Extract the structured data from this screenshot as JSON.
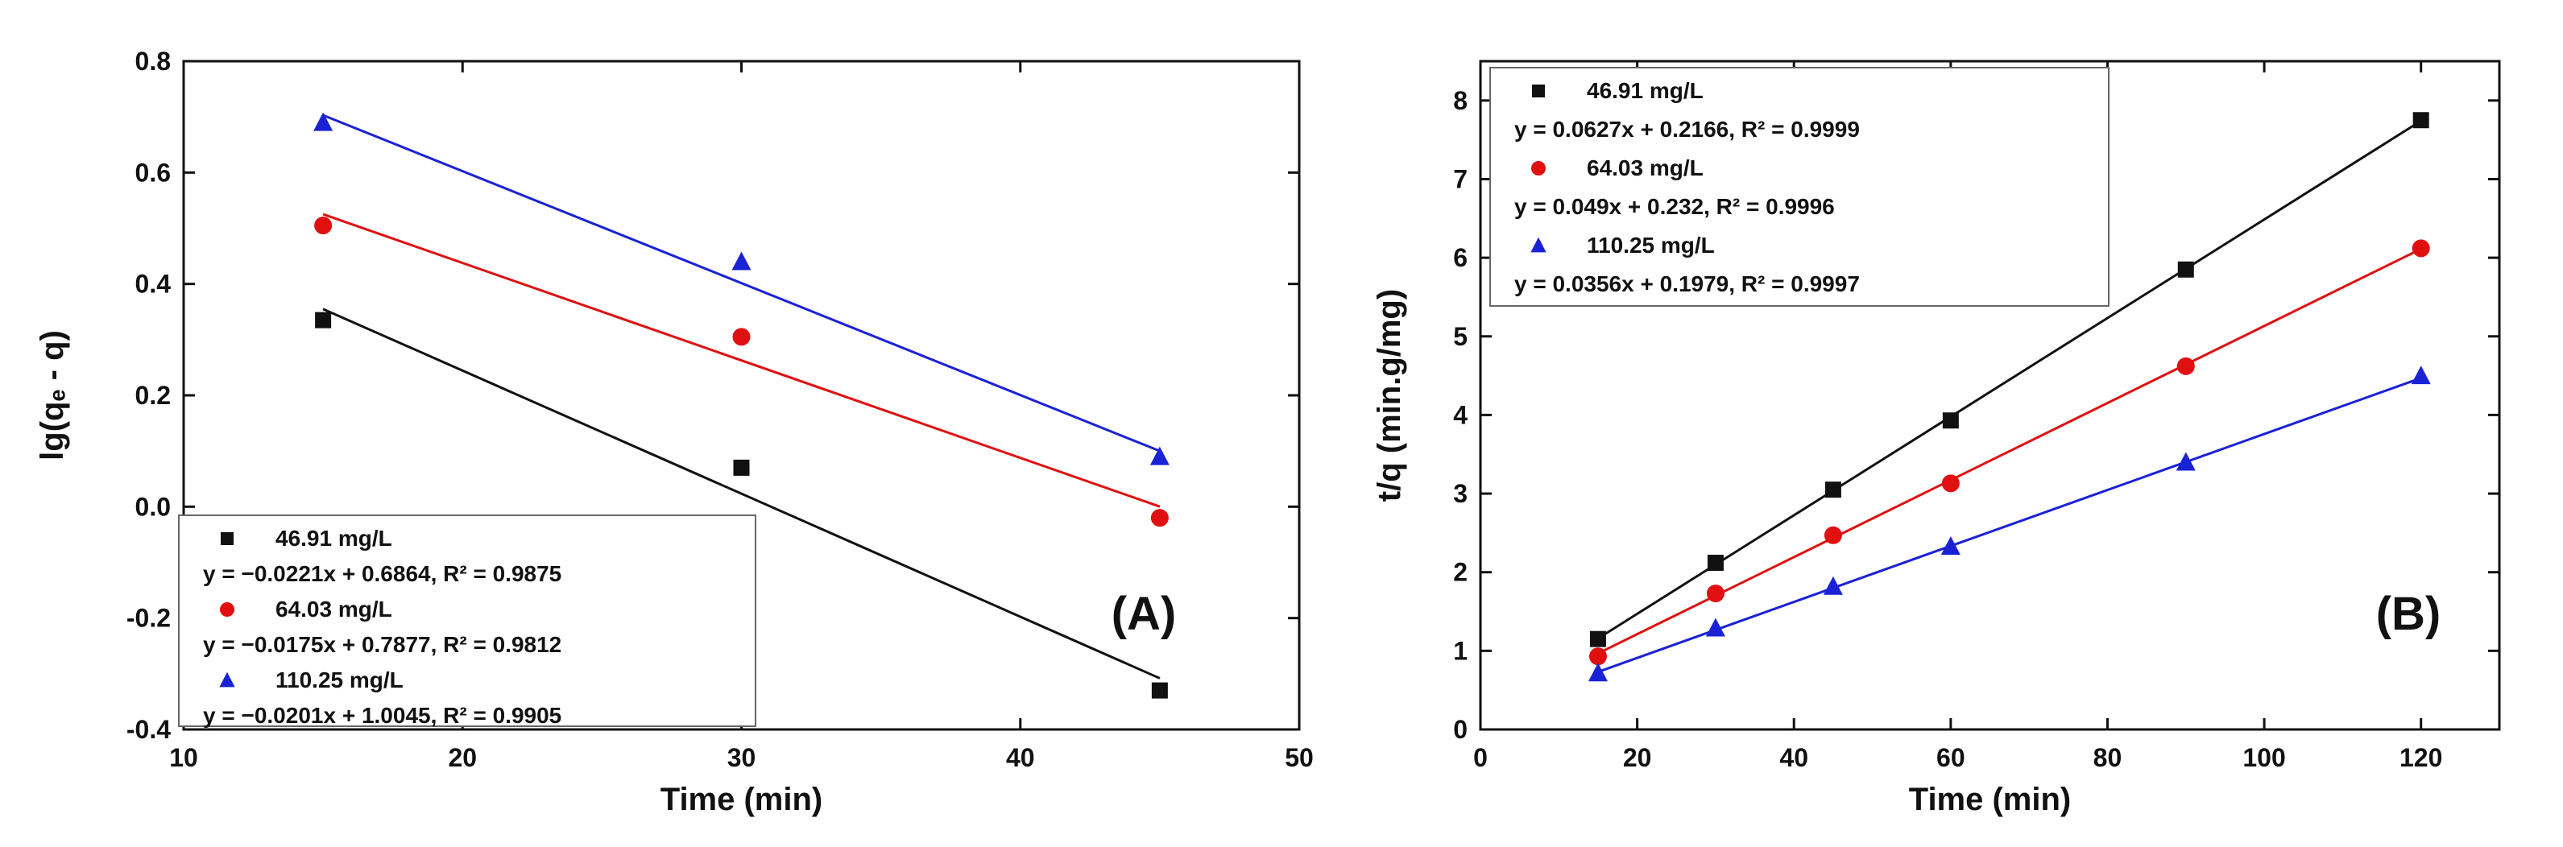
{
  "chart_data": [
    {
      "type": "scatter",
      "panel_label": "(A)",
      "xlabel": "Time (min)",
      "ylabel": "lg(qₑ - q)",
      "xlim": [
        10,
        50
      ],
      "ylim": [
        -0.4,
        0.8
      ],
      "xticks": [
        10,
        20,
        30,
        40,
        50
      ],
      "yticks": [
        -0.4,
        -0.2,
        0.0,
        0.2,
        0.4,
        0.6,
        0.8
      ],
      "ytick_labels": [
        "-0.4",
        "-0.2",
        "0.0",
        "0.2",
        "0.4",
        "0.6",
        "0.8"
      ],
      "legend_position": "bottom-left",
      "series": [
        {
          "name": "46.91 mg/L",
          "equation": "y = −0.0221x + 0.6864, R² = 0.9875",
          "color": "#111111",
          "marker": "square",
          "x": [
            15,
            30,
            45
          ],
          "y": [
            0.335,
            0.07,
            -0.33
          ],
          "fit": {
            "slope": -0.0221,
            "intercept": 0.6864
          }
        },
        {
          "name": "64.03 mg/L",
          "equation": "y = −0.0175x + 0.7877, R² = 0.9812",
          "color": "#e01010",
          "marker": "circle",
          "x": [
            15,
            30,
            45
          ],
          "y": [
            0.505,
            0.305,
            -0.02
          ],
          "fit": {
            "slope": -0.0175,
            "intercept": 0.7877
          }
        },
        {
          "name": "110.25 mg/L",
          "equation": "y = −0.0201x + 1.0045, R² = 0.9905",
          "color": "#1a22d6",
          "marker": "triangle",
          "x": [
            15,
            30,
            45
          ],
          "y": [
            0.69,
            0.44,
            0.09
          ],
          "fit": {
            "slope": -0.0201,
            "intercept": 1.0045
          }
        }
      ]
    },
    {
      "type": "scatter",
      "panel_label": "(B)",
      "xlabel": "Time (min)",
      "ylabel": "t/q (min.g/mg)",
      "xlim": [
        0,
        130
      ],
      "ylim": [
        0,
        8.5
      ],
      "xticks": [
        0,
        20,
        40,
        60,
        80,
        100,
        120
      ],
      "yticks": [
        0,
        1,
        2,
        3,
        4,
        5,
        6,
        7,
        8
      ],
      "ytick_labels": [
        "0",
        "1",
        "2",
        "3",
        "4",
        "5",
        "6",
        "7",
        "8"
      ],
      "legend_position": "top-left",
      "series": [
        {
          "name": "46.91 mg/L",
          "equation": "y = 0.0627x + 0.2166, R² = 0.9999",
          "color": "#111111",
          "marker": "square",
          "x": [
            15,
            30,
            45,
            60,
            90,
            120
          ],
          "y": [
            1.15,
            2.12,
            3.05,
            3.93,
            5.85,
            7.75
          ],
          "fit": {
            "slope": 0.0627,
            "intercept": 0.2166
          }
        },
        {
          "name": "64.03 mg/L",
          "equation": "y = 0.049x + 0.232, R² = 0.9996",
          "color": "#e01010",
          "marker": "circle",
          "x": [
            15,
            30,
            45,
            60,
            90,
            120
          ],
          "y": [
            0.93,
            1.73,
            2.47,
            3.13,
            4.62,
            6.12
          ],
          "fit": {
            "slope": 0.049,
            "intercept": 0.232
          }
        },
        {
          "name": "110.25 mg/L",
          "equation": "y = 0.0356x + 0.1979, R² = 0.9997",
          "color": "#1a22d6",
          "marker": "triangle",
          "x": [
            15,
            30,
            45,
            60,
            90,
            120
          ],
          "y": [
            0.72,
            1.29,
            1.82,
            2.33,
            3.4,
            4.5
          ],
          "fit": {
            "slope": 0.0356,
            "intercept": 0.1979
          }
        }
      ]
    }
  ]
}
